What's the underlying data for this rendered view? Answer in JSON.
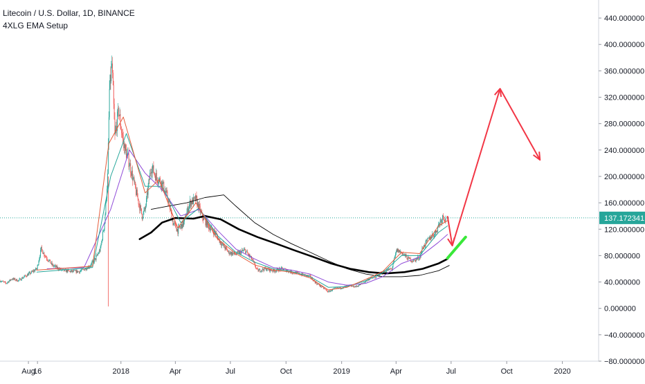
{
  "header": {
    "title": "Litecoin / U.S. Dollar, 1D, BINANCE",
    "indicator": "4XLG EMA Setup"
  },
  "chart_data": {
    "type": "candlestick",
    "price_scale": {
      "ylim": [
        -80,
        460
      ],
      "ticks": [
        440,
        400,
        360,
        320,
        280,
        240,
        200,
        160,
        120,
        80,
        40,
        0,
        -40,
        -80
      ],
      "tick_labels": [
        "440.000000",
        "400.000000",
        "360.000000",
        "320.000000",
        "280.000000",
        "240.000000",
        "200.000000",
        "160.000000",
        "120.000000",
        "80.000000",
        "40.000000",
        "0.000000",
        "−40.000000",
        "−80.000000"
      ]
    },
    "time_axis": {
      "range": [
        "2017-06-15",
        "2020-03-01"
      ],
      "ticks": [
        {
          "date": "2017-08-01",
          "label": "Aug"
        },
        {
          "date": "2017-08-16",
          "label": "16"
        },
        {
          "date": "2018-01-01",
          "label": "2018"
        },
        {
          "date": "2018-04-01",
          "label": "Apr"
        },
        {
          "date": "2018-07-01",
          "label": "Jul"
        },
        {
          "date": "2018-10-01",
          "label": "Oct"
        },
        {
          "date": "2019-01-01",
          "label": "2019"
        },
        {
          "date": "2019-04-01",
          "label": "Apr"
        },
        {
          "date": "2019-07-01",
          "label": "Jul"
        },
        {
          "date": "2019-10-01",
          "label": "Oct"
        },
        {
          "date": "2020-01-01",
          "label": "2020"
        }
      ]
    },
    "last_price": {
      "value": 137.172341,
      "label": "137.172341",
      "color": "#26a69a"
    },
    "price_path": [
      [
        "2017-06-15",
        42
      ],
      [
        "2017-06-25",
        38
      ],
      [
        "2017-07-05",
        45
      ],
      [
        "2017-07-15",
        42
      ],
      [
        "2017-07-25",
        48
      ],
      [
        "2017-08-05",
        54
      ],
      [
        "2017-08-15",
        60
      ],
      [
        "2017-08-22",
        90
      ],
      [
        "2017-08-30",
        78
      ],
      [
        "2017-09-10",
        65
      ],
      [
        "2017-09-25",
        58
      ],
      [
        "2017-10-10",
        56
      ],
      [
        "2017-10-25",
        56
      ],
      [
        "2017-11-10",
        64
      ],
      [
        "2017-11-20",
        75
      ],
      [
        "2017-11-28",
        90
      ],
      [
        "2017-12-05",
        130
      ],
      [
        "2017-12-10",
        200
      ],
      [
        "2017-12-13",
        330
      ],
      [
        "2017-12-17",
        370
      ],
      [
        "2017-12-22",
        260
      ],
      [
        "2017-12-28",
        300
      ],
      [
        "2018-01-05",
        250
      ],
      [
        "2018-01-15",
        220
      ],
      [
        "2018-01-25",
        180
      ],
      [
        "2018-02-05",
        140
      ],
      [
        "2018-02-10",
        150
      ],
      [
        "2018-02-20",
        215
      ],
      [
        "2018-02-28",
        200
      ],
      [
        "2018-03-10",
        190
      ],
      [
        "2018-03-20",
        165
      ],
      [
        "2018-03-28",
        130
      ],
      [
        "2018-04-05",
        118
      ],
      [
        "2018-04-15",
        130
      ],
      [
        "2018-04-25",
        160
      ],
      [
        "2018-05-05",
        165
      ],
      [
        "2018-05-15",
        140
      ],
      [
        "2018-05-25",
        125
      ],
      [
        "2018-06-05",
        115
      ],
      [
        "2018-06-15",
        100
      ],
      [
        "2018-06-28",
        85
      ],
      [
        "2018-07-10",
        82
      ],
      [
        "2018-07-25",
        88
      ],
      [
        "2018-08-05",
        75
      ],
      [
        "2018-08-15",
        57
      ],
      [
        "2018-08-28",
        60
      ],
      [
        "2018-09-10",
        57
      ],
      [
        "2018-09-25",
        60
      ],
      [
        "2018-10-10",
        55
      ],
      [
        "2018-10-25",
        52
      ],
      [
        "2018-11-10",
        48
      ],
      [
        "2018-11-20",
        38
      ],
      [
        "2018-11-30",
        32
      ],
      [
        "2018-12-10",
        25
      ],
      [
        "2018-12-20",
        30
      ],
      [
        "2018-12-31",
        31
      ],
      [
        "2019-01-10",
        34
      ],
      [
        "2019-01-25",
        33
      ],
      [
        "2019-02-05",
        38
      ],
      [
        "2019-02-15",
        45
      ],
      [
        "2019-02-25",
        47
      ],
      [
        "2019-03-05",
        52
      ],
      [
        "2019-03-15",
        57
      ],
      [
        "2019-03-25",
        60
      ],
      [
        "2019-04-02",
        88
      ],
      [
        "2019-04-10",
        85
      ],
      [
        "2019-04-20",
        76
      ],
      [
        "2019-04-30",
        72
      ],
      [
        "2019-05-10",
        78
      ],
      [
        "2019-05-15",
        92
      ],
      [
        "2019-05-25",
        105
      ],
      [
        "2019-06-05",
        115
      ],
      [
        "2019-06-12",
        130
      ],
      [
        "2019-06-18",
        140
      ],
      [
        "2019-06-22",
        135
      ]
    ],
    "emas": [
      {
        "color": "#000000",
        "width": 2.6,
        "points": [
          [
            "2018-02-01",
            105
          ],
          [
            "2018-02-20",
            115
          ],
          [
            "2018-03-10",
            130
          ],
          [
            "2018-04-01",
            137
          ],
          [
            "2018-05-01",
            136
          ],
          [
            "2018-05-20",
            140
          ],
          [
            "2018-06-15",
            135
          ],
          [
            "2018-07-15",
            120
          ],
          [
            "2018-08-15",
            108
          ],
          [
            "2018-09-15",
            98
          ],
          [
            "2018-10-15",
            88
          ],
          [
            "2018-11-15",
            78
          ],
          [
            "2018-12-15",
            68
          ],
          [
            "2019-01-15",
            60
          ],
          [
            "2019-02-15",
            55
          ],
          [
            "2019-03-15",
            53
          ],
          [
            "2019-04-15",
            55
          ],
          [
            "2019-05-15",
            60
          ],
          [
            "2019-06-10",
            68
          ],
          [
            "2019-06-25",
            75
          ]
        ]
      },
      {
        "color": "#000000",
        "width": 0.9,
        "points": [
          [
            "2018-02-20",
            150
          ],
          [
            "2018-03-20",
            155
          ],
          [
            "2018-04-20",
            160
          ],
          [
            "2018-05-20",
            168
          ],
          [
            "2018-06-20",
            172
          ],
          [
            "2018-07-10",
            155
          ],
          [
            "2018-08-10",
            130
          ],
          [
            "2018-09-10",
            112
          ],
          [
            "2018-10-10",
            98
          ],
          [
            "2018-11-10",
            85
          ],
          [
            "2018-12-10",
            72
          ],
          [
            "2019-01-10",
            60
          ],
          [
            "2019-02-10",
            52
          ],
          [
            "2019-03-10",
            48
          ],
          [
            "2019-04-10",
            48
          ],
          [
            "2019-05-10",
            50
          ],
          [
            "2019-06-10",
            57
          ],
          [
            "2019-06-28",
            65
          ]
        ]
      },
      {
        "color": "#8f4bd8",
        "width": 1,
        "points": [
          [
            "2017-09-01",
            60
          ],
          [
            "2017-11-01",
            62
          ],
          [
            "2017-12-15",
            150
          ],
          [
            "2018-01-15",
            240
          ],
          [
            "2018-02-10",
            205
          ],
          [
            "2018-03-10",
            180
          ],
          [
            "2018-04-10",
            140
          ],
          [
            "2018-05-10",
            150
          ],
          [
            "2018-06-10",
            118
          ],
          [
            "2018-07-10",
            90
          ],
          [
            "2018-08-10",
            75
          ],
          [
            "2018-09-10",
            62
          ],
          [
            "2018-10-10",
            58
          ],
          [
            "2018-11-10",
            52
          ],
          [
            "2018-12-10",
            40
          ],
          [
            "2019-01-10",
            35
          ],
          [
            "2019-02-10",
            38
          ],
          [
            "2019-03-10",
            48
          ],
          [
            "2019-04-10",
            68
          ],
          [
            "2019-05-10",
            78
          ],
          [
            "2019-06-10",
            100
          ],
          [
            "2019-06-25",
            112
          ]
        ]
      },
      {
        "color": "#26a69a",
        "width": 1,
        "points": [
          [
            "2017-08-15",
            55
          ],
          [
            "2017-11-15",
            62
          ],
          [
            "2017-12-15",
            200
          ],
          [
            "2018-01-10",
            265
          ],
          [
            "2018-02-10",
            185
          ],
          [
            "2018-03-10",
            185
          ],
          [
            "2018-04-10",
            130
          ],
          [
            "2018-05-10",
            152
          ],
          [
            "2018-06-10",
            110
          ],
          [
            "2018-07-10",
            85
          ],
          [
            "2018-08-10",
            70
          ],
          [
            "2018-09-10",
            60
          ],
          [
            "2018-10-10",
            56
          ],
          [
            "2018-11-10",
            48
          ],
          [
            "2018-12-10",
            32
          ],
          [
            "2019-01-10",
            33
          ],
          [
            "2019-02-10",
            42
          ],
          [
            "2019-03-10",
            54
          ],
          [
            "2019-04-10",
            80
          ],
          [
            "2019-05-10",
            80
          ],
          [
            "2019-06-10",
            115
          ],
          [
            "2019-06-25",
            125
          ]
        ]
      },
      {
        "color": "#e55c3b",
        "width": 1,
        "points": [
          [
            "2017-08-15",
            58
          ],
          [
            "2017-11-15",
            64
          ],
          [
            "2017-12-12",
            250
          ],
          [
            "2018-01-05",
            290
          ],
          [
            "2018-02-10",
            175
          ],
          [
            "2018-03-05",
            195
          ],
          [
            "2018-04-05",
            122
          ],
          [
            "2018-05-05",
            160
          ],
          [
            "2018-06-10",
            105
          ],
          [
            "2018-07-10",
            83
          ],
          [
            "2018-08-10",
            66
          ],
          [
            "2018-09-10",
            58
          ],
          [
            "2018-10-10",
            55
          ],
          [
            "2018-11-10",
            46
          ],
          [
            "2018-12-10",
            28
          ],
          [
            "2019-01-10",
            32
          ],
          [
            "2019-02-10",
            44
          ],
          [
            "2019-03-10",
            56
          ],
          [
            "2019-04-10",
            85
          ],
          [
            "2019-05-10",
            83
          ],
          [
            "2019-06-10",
            125
          ],
          [
            "2019-06-25",
            133
          ]
        ]
      }
    ],
    "drawings": [
      {
        "type": "arrow",
        "color": "#f23645",
        "from": [
          "2019-06-25",
          140
        ],
        "to": [
          "2019-07-03",
          95
        ]
      },
      {
        "type": "arrow",
        "color": "#f23645",
        "from": [
          "2019-07-03",
          95
        ],
        "to": [
          "2019-09-20",
          333
        ]
      },
      {
        "type": "arrow",
        "color": "#f23645",
        "from": [
          "2019-09-20",
          333
        ],
        "to": [
          "2019-11-25",
          225
        ]
      },
      {
        "type": "segment",
        "color": "#39e839",
        "from": [
          "2019-06-25",
          76
        ],
        "to": [
          "2019-07-25",
          108
        ]
      }
    ]
  }
}
